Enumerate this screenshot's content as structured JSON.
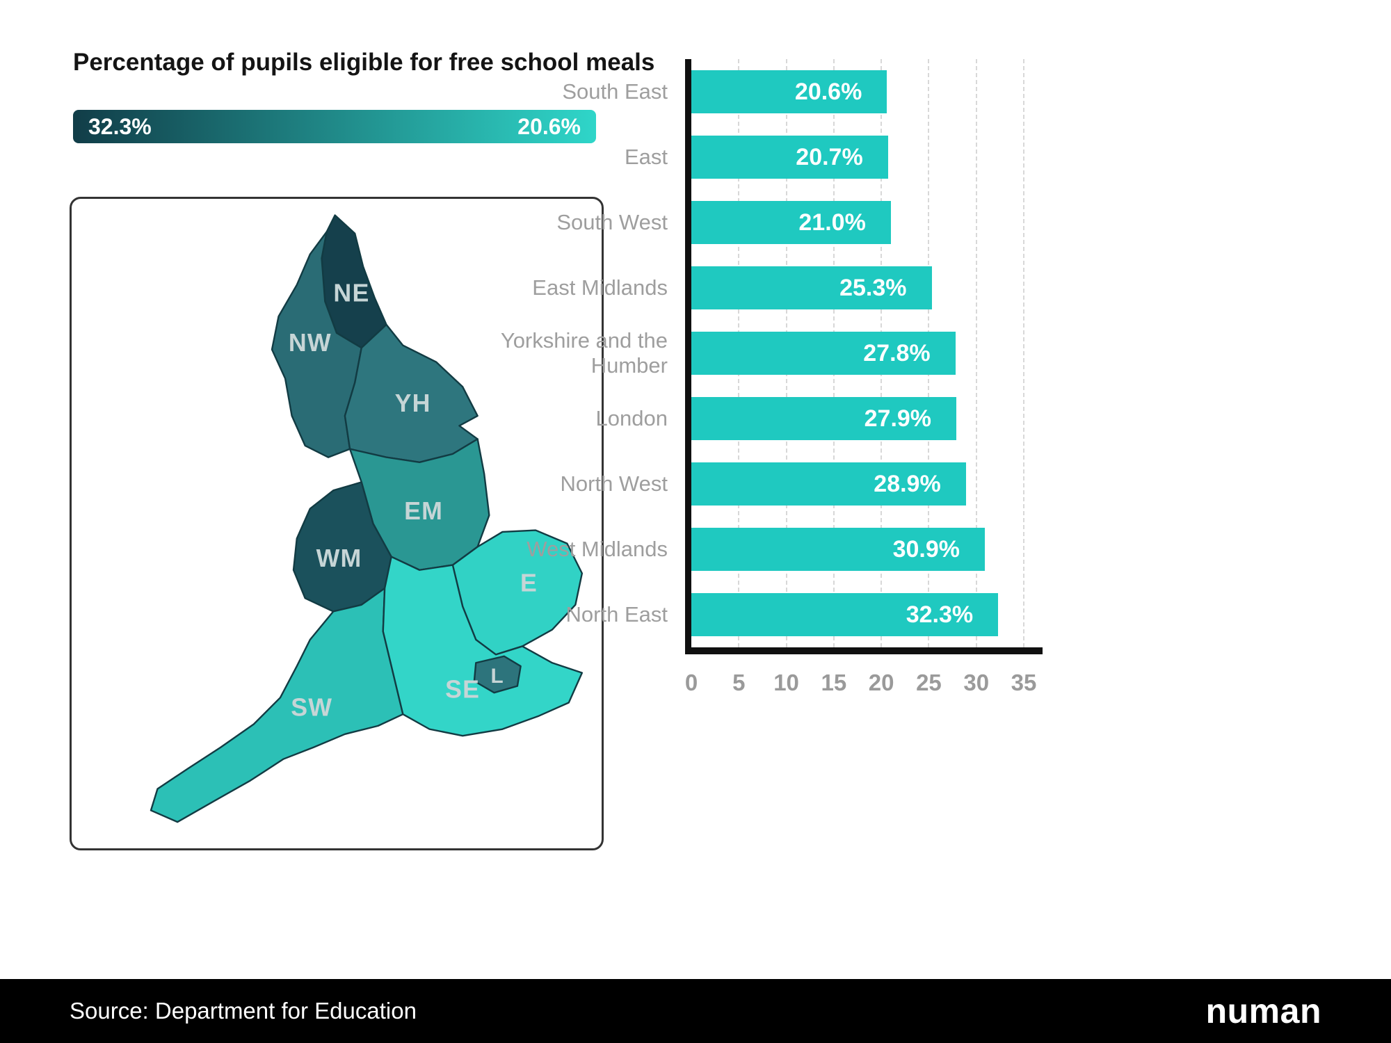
{
  "title": "Percentage of pupils eligible for free school meals",
  "legend": {
    "max_label": "32.3%",
    "min_label": "20.6%",
    "dark_color": "#113d48",
    "light_color": "#2fd6c9"
  },
  "source": "Source: Department for Education",
  "brand": "numan",
  "map": {
    "regions": [
      {
        "code": "NE",
        "name": "North East",
        "value": 32.3,
        "color": "#15404c"
      },
      {
        "code": "NW",
        "name": "North West",
        "value": 28.9,
        "color": "#2a6c75"
      },
      {
        "code": "YH",
        "name": "Yorkshire and the Humber",
        "value": 27.8,
        "color": "#2e767e"
      },
      {
        "code": "EM",
        "name": "East Midlands",
        "value": 25.3,
        "color": "#2a9793"
      },
      {
        "code": "WM",
        "name": "West Midlands",
        "value": 30.9,
        "color": "#1b515c"
      },
      {
        "code": "E",
        "name": "East",
        "value": 20.7,
        "color": "#31d2c5"
      },
      {
        "code": "L",
        "name": "London",
        "value": 27.9,
        "color": "#2d747c"
      },
      {
        "code": "SE",
        "name": "South East",
        "value": 20.6,
        "color": "#33d5c8"
      },
      {
        "code": "SW",
        "name": "South West",
        "value": 21.0,
        "color": "#2cc0b6"
      }
    ]
  },
  "chart_data": {
    "type": "bar",
    "orientation": "horizontal",
    "title": "Percentage of pupils eligible for free school meals",
    "categories": [
      "South East",
      "East",
      "South West",
      "East Midlands",
      "Yorkshire and the Humber",
      "London",
      "North West",
      "West Midlands",
      "North East"
    ],
    "values": [
      20.6,
      20.7,
      21.0,
      25.3,
      27.8,
      27.9,
      28.9,
      30.9,
      32.3
    ],
    "value_labels": [
      "20.6%",
      "20.7%",
      "21.0%",
      "25.3%",
      "27.8%",
      "27.9%",
      "28.9%",
      "30.9%",
      "32.3%"
    ],
    "xlabel": "",
    "ylabel": "",
    "xlim": [
      0,
      35
    ],
    "xticks": [
      0,
      5,
      10,
      15,
      20,
      25,
      30,
      35
    ],
    "bar_color": "#1fc9c0",
    "grid": "vertical-dashed",
    "legend_position": "none"
  }
}
